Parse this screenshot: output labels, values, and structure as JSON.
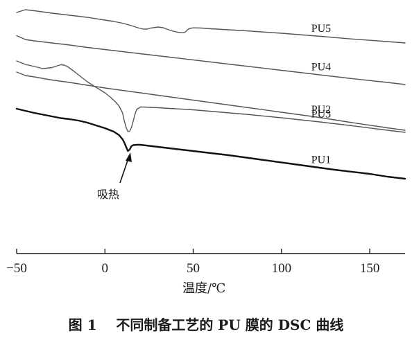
{
  "caption": "图 1    不同制备工艺的 PU 膜的 DSC 曲线",
  "chart_data": {
    "type": "line",
    "title": "",
    "xlabel": "温度/℃",
    "ylabel": "",
    "xlim": [
      -50,
      170
    ],
    "xticks": [
      -50,
      0,
      50,
      100,
      150
    ],
    "y_axis_shown": false,
    "grid": false,
    "legend": "inline labels at right end of curves",
    "annotation": {
      "text": "吸热",
      "points_to_series": "PU1",
      "x": 13
    },
    "series": [
      {
        "name": "PU5",
        "bold": false,
        "points": [
          [
            -50,
            18
          ],
          [
            -45,
            14
          ],
          [
            -40,
            15.5
          ],
          [
            -30,
            19
          ],
          [
            -20,
            22
          ],
          [
            -10,
            25
          ],
          [
            0,
            29
          ],
          [
            5,
            31
          ],
          [
            10,
            33.5
          ],
          [
            15,
            37
          ],
          [
            18,
            39.5
          ],
          [
            20,
            41
          ],
          [
            22,
            42
          ],
          [
            24,
            42
          ],
          [
            25,
            41
          ],
          [
            26,
            40.5
          ],
          [
            30,
            39
          ],
          [
            33,
            40
          ],
          [
            35,
            42
          ],
          [
            38,
            44.5
          ],
          [
            40,
            45.8
          ],
          [
            42,
            46.8
          ],
          [
            44,
            47.2
          ],
          [
            45,
            47
          ],
          [
            46,
            45
          ],
          [
            47,
            42.5
          ],
          [
            48,
            41
          ],
          [
            50,
            40.2
          ],
          [
            55,
            40.5
          ],
          [
            60,
            41.5
          ],
          [
            80,
            44.5
          ],
          [
            100,
            48
          ],
          [
            120,
            52
          ],
          [
            140,
            56.3
          ],
          [
            160,
            60
          ],
          [
            170,
            62
          ]
        ]
      },
      {
        "name": "PU4",
        "bold": false,
        "points": [
          [
            -50,
            51.5
          ],
          [
            -45,
            57
          ],
          [
            -40,
            59
          ],
          [
            -30,
            62
          ],
          [
            -20,
            65
          ],
          [
            -10,
            68.5
          ],
          [
            0,
            71.5
          ],
          [
            20,
            77.5
          ],
          [
            40,
            83.5
          ],
          [
            60,
            89.5
          ],
          [
            80,
            95.5
          ],
          [
            100,
            101.5
          ],
          [
            120,
            107.5
          ],
          [
            140,
            113.5
          ],
          [
            160,
            119
          ],
          [
            170,
            122
          ]
        ]
      },
      {
        "name": "PU3",
        "bold": false,
        "points": [
          [
            -50,
            88
          ],
          [
            -45,
            93
          ],
          [
            -40,
            96
          ],
          [
            -35,
            99
          ],
          [
            -30,
            97.5
          ],
          [
            -27,
            95
          ],
          [
            -25,
            93.5
          ],
          [
            -23,
            94
          ],
          [
            -21,
            96.5
          ],
          [
            -18,
            102
          ],
          [
            -14,
            110
          ],
          [
            -10,
            118
          ],
          [
            -5,
            126
          ],
          [
            0,
            134
          ],
          [
            3,
            140
          ],
          [
            6,
            147
          ],
          [
            8,
            153
          ],
          [
            10,
            163
          ],
          [
            11,
            175
          ],
          [
            12,
            184
          ],
          [
            13,
            190
          ],
          [
            14,
            189.5
          ],
          [
            15,
            184
          ],
          [
            16,
            175
          ],
          [
            17,
            165
          ],
          [
            18,
            158
          ],
          [
            20,
            154.5
          ],
          [
            22,
            154.5
          ],
          [
            30,
            155.5
          ],
          [
            50,
            158.5
          ],
          [
            80,
            165
          ],
          [
            100,
            170
          ],
          [
            120,
            175.5
          ],
          [
            140,
            181.5
          ],
          [
            160,
            188
          ],
          [
            170,
            191
          ]
        ]
      },
      {
        "name": "PU2",
        "bold": false,
        "points": [
          [
            -50,
            104
          ],
          [
            -45,
            109
          ],
          [
            -40,
            111
          ],
          [
            -30,
            115.5
          ],
          [
            -20,
            119
          ],
          [
            -10,
            123
          ],
          [
            0,
            127
          ],
          [
            20,
            134
          ],
          [
            40,
            141
          ],
          [
            60,
            148
          ],
          [
            80,
            155
          ],
          [
            100,
            162
          ],
          [
            120,
            169
          ],
          [
            140,
            177
          ],
          [
            160,
            184.5
          ],
          [
            170,
            188
          ]
        ]
      },
      {
        "name": "PU1",
        "bold": true,
        "points": [
          [
            -50,
            157
          ],
          [
            -45,
            160
          ],
          [
            -40,
            163
          ],
          [
            -30,
            168
          ],
          [
            -25,
            170.5
          ],
          [
            -20,
            172
          ],
          [
            -15,
            174
          ],
          [
            -10,
            177
          ],
          [
            -5,
            181
          ],
          [
            0,
            185
          ],
          [
            5,
            190
          ],
          [
            8,
            195
          ],
          [
            10,
            201
          ],
          [
            11,
            206
          ],
          [
            12,
            212
          ],
          [
            13,
            218
          ],
          [
            14,
            216
          ],
          [
            15,
            211
          ],
          [
            16,
            209.5
          ],
          [
            18,
            209
          ],
          [
            20,
            209
          ],
          [
            30,
            212
          ],
          [
            50,
            218
          ],
          [
            70,
            224
          ],
          [
            90,
            231
          ],
          [
            110,
            238
          ],
          [
            130,
            245
          ],
          [
            150,
            251
          ],
          [
            160,
            255
          ],
          [
            170,
            258
          ]
        ]
      }
    ]
  }
}
